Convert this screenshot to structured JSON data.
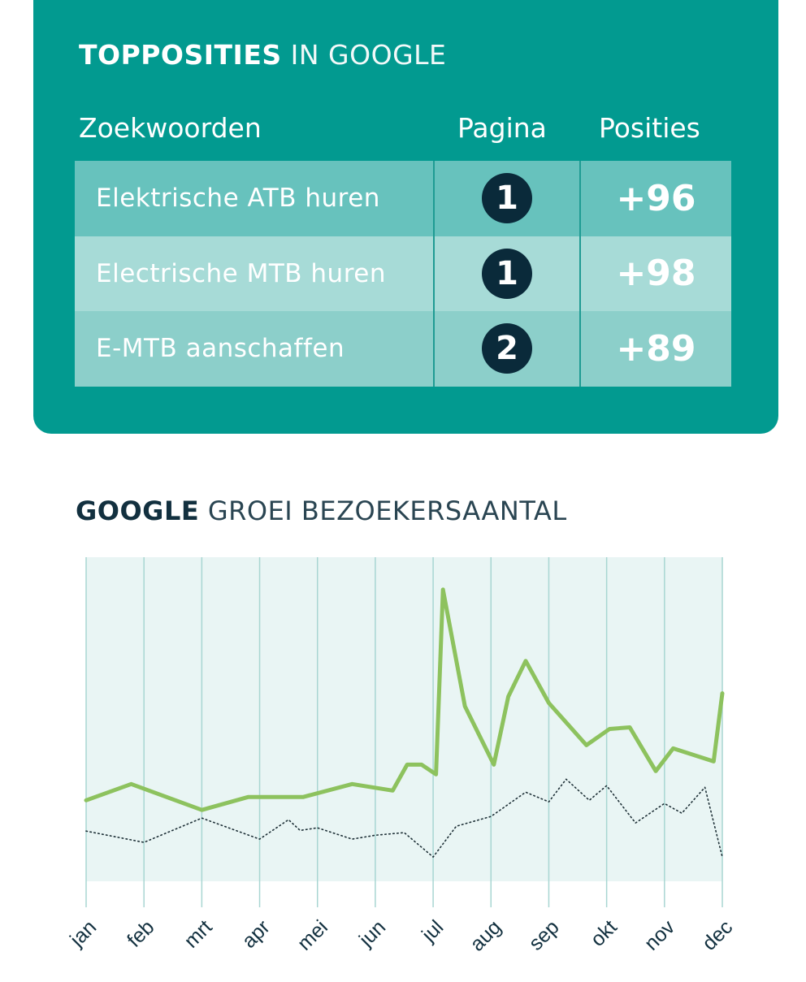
{
  "table_card": {
    "title_bold": "TOPPOSITIES",
    "title_light": "IN GOOGLE",
    "headers": {
      "keywords": "Zoekwoorden",
      "page": "Pagina",
      "positions": "Posities"
    },
    "rows": [
      {
        "keyword": "Elektrische ATB huren",
        "page": "1",
        "positions": "+96"
      },
      {
        "keyword": "Electrische MTB huren",
        "page": "1",
        "positions": "+98"
      },
      {
        "keyword": "E-MTB aanschaffen",
        "page": "2",
        "positions": "+89"
      }
    ]
  },
  "chart_title": {
    "bold": "GOOGLE",
    "light": "GROEI BEZOEKERSAANTAL"
  },
  "colors": {
    "teal_card": "#029a90",
    "plot_background": "#e9f5f4",
    "gridline": "#a8d6d2",
    "series_green": "#8dc25e",
    "series_dotted": "#1d2f36",
    "badge": "#0a2a3a"
  },
  "chart_data": {
    "type": "line",
    "title": "GOOGLE GROEI BEZOEKERSAANTAL",
    "categories": [
      "jan",
      "feb",
      "mrt",
      "apr",
      "mei",
      "jun",
      "jul",
      "aug",
      "sep",
      "okt",
      "nov",
      "dec"
    ],
    "x_range": [
      0,
      11
    ],
    "y_range": [
      0,
      100
    ],
    "y_axis_labels_shown": false,
    "grid": "vertical lines at each month",
    "series": [
      {
        "style": "solid",
        "points": [
          [
            0,
            25
          ],
          [
            0.78,
            30
          ],
          [
            2,
            22
          ],
          [
            2.8,
            26
          ],
          [
            3.75,
            26
          ],
          [
            4.6,
            30
          ],
          [
            5.3,
            28
          ],
          [
            5.55,
            36
          ],
          [
            5.8,
            36
          ],
          [
            6.05,
            33
          ],
          [
            6.17,
            90
          ],
          [
            6.55,
            54
          ],
          [
            7.05,
            36
          ],
          [
            7.3,
            57
          ],
          [
            7.6,
            68
          ],
          [
            8,
            55
          ],
          [
            8.65,
            42
          ],
          [
            9.05,
            47
          ],
          [
            9.4,
            47.5
          ],
          [
            9.85,
            34
          ],
          [
            10.15,
            41
          ],
          [
            10.85,
            37
          ],
          [
            11,
            58
          ]
        ]
      },
      {
        "style": "dotted",
        "points": [
          [
            0,
            15.5
          ],
          [
            1,
            12
          ],
          [
            2,
            19.5
          ],
          [
            3,
            13
          ],
          [
            3.5,
            19
          ],
          [
            3.7,
            15.7
          ],
          [
            4,
            16.5
          ],
          [
            4.6,
            13
          ],
          [
            5,
            14.2
          ],
          [
            5.5,
            15
          ],
          [
            6,
            7.5
          ],
          [
            6.4,
            17
          ],
          [
            7,
            20
          ],
          [
            7.6,
            27.5
          ],
          [
            8,
            24.5
          ],
          [
            8.3,
            31.5
          ],
          [
            8.7,
            25
          ],
          [
            9,
            29.5
          ],
          [
            9.5,
            18
          ],
          [
            10,
            24
          ],
          [
            10.3,
            21
          ],
          [
            10.7,
            29
          ],
          [
            11,
            7.5
          ]
        ]
      }
    ]
  }
}
